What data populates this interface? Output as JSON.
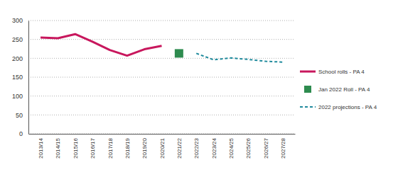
{
  "chart_data": {
    "type": "line",
    "categories": [
      "2013/14",
      "2014/15",
      "2015/16",
      "2016/17",
      "2017/18",
      "2018/19",
      "2019/20",
      "2020/21",
      "2021/22",
      "2022/23",
      "2023/24",
      "2024/25",
      "2025/26",
      "2026/27",
      "2027/28"
    ],
    "series": [
      {
        "name": "School rolls - PA 4",
        "color": "#c8175d",
        "type": "line",
        "line_style": "solid",
        "values": [
          255,
          253,
          264,
          244,
          222,
          207,
          224,
          233,
          null,
          null,
          null,
          null,
          null,
          null,
          null
        ]
      },
      {
        "name": "Jan 2022 Roll - PA 4",
        "color": "#2e8b4f",
        "type": "scatter",
        "marker": "square",
        "values": [
          null,
          null,
          null,
          null,
          null,
          null,
          null,
          null,
          213,
          null,
          null,
          null,
          null,
          null,
          null
        ]
      },
      {
        "name": "2022 projections - PA 4",
        "color": "#1f8a9c",
        "type": "line",
        "line_style": "dashed",
        "values": [
          null,
          null,
          null,
          null,
          null,
          null,
          null,
          null,
          null,
          213,
          196,
          201,
          197,
          192,
          190
        ]
      }
    ],
    "ylim": [
      0,
      300
    ],
    "yticks": [
      0,
      50,
      100,
      150,
      200,
      250,
      300
    ],
    "grid": true,
    "legend": "right"
  }
}
